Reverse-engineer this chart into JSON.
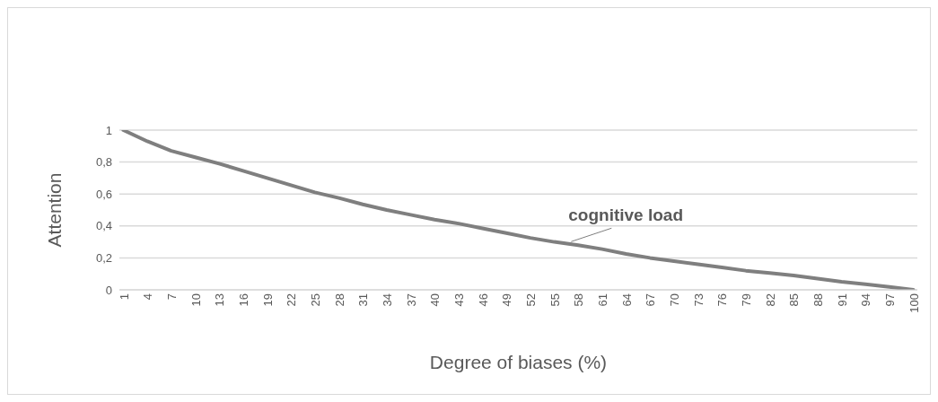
{
  "chart_data": {
    "type": "line",
    "xlabel": "Degree of biases (%)",
    "ylabel": "Attention",
    "x": [
      1,
      4,
      7,
      10,
      13,
      16,
      19,
      22,
      25,
      28,
      31,
      34,
      37,
      40,
      43,
      46,
      49,
      52,
      55,
      58,
      61,
      64,
      67,
      70,
      73,
      76,
      79,
      82,
      85,
      88,
      91,
      94,
      97,
      100
    ],
    "series": [
      {
        "color": "#7f7f7f",
        "values": [
          1,
          0.93,
          0.87,
          0.83,
          0.79,
          0.745,
          0.7,
          0.655,
          0.61,
          0.575,
          0.535,
          0.5,
          0.47,
          0.44,
          0.415,
          0.385,
          0.355,
          0.325,
          0.3,
          0.28,
          0.255,
          0.225,
          0.2,
          0.18,
          0.16,
          0.14,
          0.12,
          0.105,
          0.09,
          0.07,
          0.05,
          0.035,
          0.018,
          0
        ]
      }
    ],
    "xlim": [
      0.5,
      100.5
    ],
    "xticks": [
      1,
      4,
      7,
      10,
      13,
      16,
      19,
      22,
      25,
      28,
      31,
      34,
      37,
      40,
      43,
      46,
      49,
      52,
      55,
      58,
      61,
      64,
      67,
      70,
      73,
      76,
      79,
      82,
      85,
      88,
      91,
      94,
      97,
      100
    ],
    "ylim": [
      0,
      1
    ],
    "yticks": [
      0,
      {
        "value": 0.2,
        "label": "0,2"
      },
      {
        "value": 0.4,
        "label": "0,4"
      },
      {
        "value": 0.6,
        "label": "0,6"
      },
      {
        "value": 0.8,
        "label": "0,8"
      },
      1
    ],
    "annotations": [
      {
        "text": "cognitive load",
        "x": 57,
        "y": 0.285
      }
    ],
    "grid": "y",
    "marker": "none",
    "line_style": "solid"
  }
}
